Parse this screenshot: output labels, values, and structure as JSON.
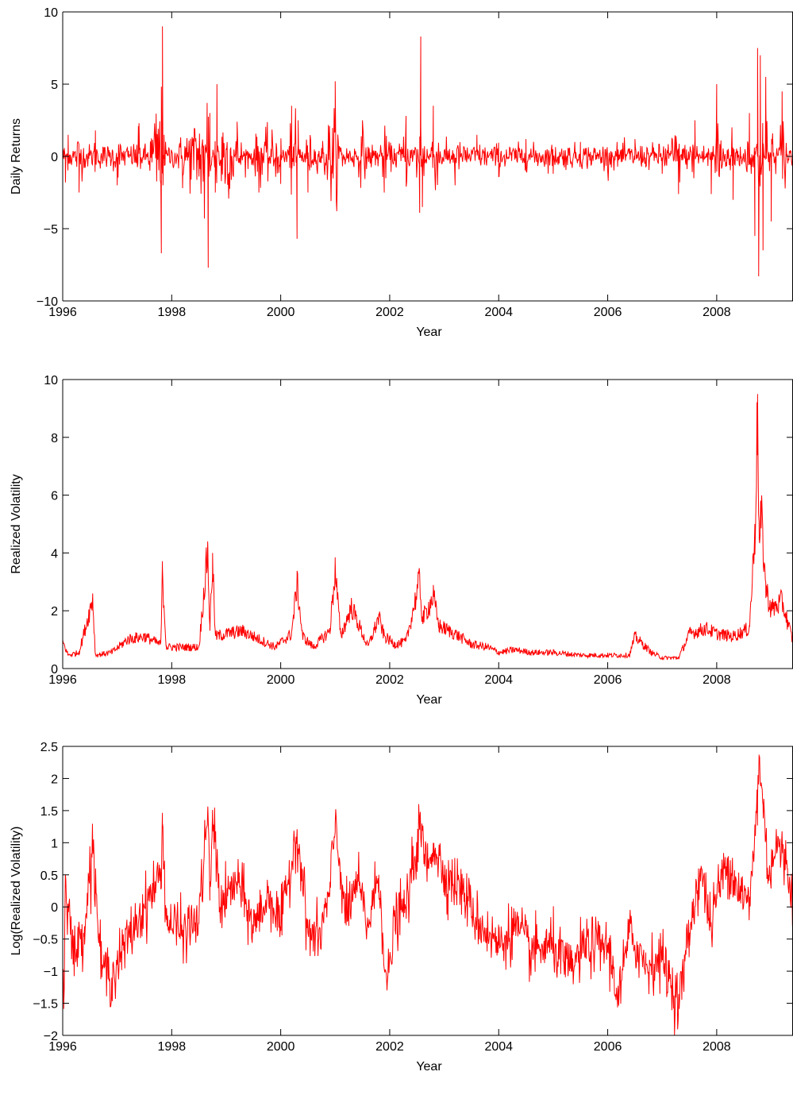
{
  "chart_data": [
    {
      "type": "line",
      "xlabel": "Year",
      "ylabel": "Daily Returns",
      "xlim": [
        1996,
        2009.4
      ],
      "ylim": [
        -10,
        10
      ],
      "xticks": [
        "1996",
        "1998",
        "2000",
        "2002",
        "2004",
        "2006",
        "2008"
      ],
      "yticks": [
        "10",
        "5",
        "0",
        "−5",
        "−10"
      ],
      "grid": false,
      "color": "#ff0000",
      "series": [
        {
          "x": [
            1996.0,
            1996.05,
            1996.1,
            1996.3,
            1996.6,
            1997.0,
            1997.4,
            1997.81,
            1997.83,
            1997.84,
            1997.86,
            1998.2,
            1998.6,
            1998.65,
            1998.67,
            1998.7,
            1998.8,
            1998.83,
            1999.2,
            1999.6,
            2000.0,
            2000.2,
            2000.3,
            2000.32,
            2000.5,
            2001.0,
            2001.02,
            2001.5,
            2001.9,
            2002.3,
            2002.55,
            2002.57,
            2002.6,
            2002.8,
            2003.2,
            2003.6,
            2004.0,
            2004.5,
            2005.0,
            2005.5,
            2006.0,
            2006.5,
            2007.0,
            2007.3,
            2007.6,
            2007.9,
            2008.0,
            2008.3,
            2008.6,
            2008.7,
            2008.75,
            2008.77,
            2008.8,
            2008.85,
            2008.9,
            2009.0,
            2009.2,
            2009.4
          ],
          "y": [
            0.5,
            -1.8,
            1.5,
            -2.5,
            1.8,
            -2.0,
            2.3,
            -6.7,
            9.0,
            -2.0,
            1.5,
            -2.2,
            -4.3,
            3.7,
            -7.7,
            3.0,
            -2.5,
            5.0,
            2.4,
            -2.5,
            -1.9,
            3.5,
            -5.7,
            2.5,
            -2.5,
            5.2,
            -3.0,
            2.5,
            -2.5,
            2.8,
            -3.9,
            8.3,
            -3.5,
            3.5,
            -2.0,
            1.5,
            -1.4,
            1.2,
            -1.2,
            1.0,
            -1.0,
            1.2,
            -1.2,
            -2.6,
            2.5,
            -2.6,
            5.0,
            -3.0,
            3.0,
            -5.5,
            7.5,
            -8.3,
            7.0,
            -6.5,
            5.5,
            -4.5,
            4.5,
            -2.0
          ]
        }
      ]
    },
    {
      "type": "line",
      "xlabel": "Year",
      "ylabel": "Realized Volatility",
      "xlim": [
        1996,
        2009.4
      ],
      "ylim": [
        0,
        10
      ],
      "xticks": [
        "1996",
        "1998",
        "2000",
        "2002",
        "2004",
        "2006",
        "2008"
      ],
      "yticks": [
        "10",
        "8",
        "6",
        "4",
        "2",
        "0"
      ],
      "grid": false,
      "color": "#ff0000",
      "series": [
        {
          "x": [
            1996.0,
            1996.1,
            1996.3,
            1996.55,
            1996.6,
            1996.9,
            1997.2,
            1997.5,
            1997.8,
            1997.83,
            1997.9,
            1998.2,
            1998.5,
            1998.66,
            1998.7,
            1998.75,
            1998.8,
            1999.0,
            1999.3,
            1999.6,
            1999.9,
            2000.2,
            2000.3,
            2000.4,
            2000.6,
            2000.9,
            2001.0,
            2001.1,
            2001.3,
            2001.6,
            2001.8,
            2001.9,
            2002.1,
            2002.3,
            2002.55,
            2002.6,
            2002.8,
            2002.9,
            2003.2,
            2003.5,
            2003.8,
            2004.0,
            2004.3,
            2004.6,
            2005.0,
            2005.5,
            2006.0,
            2006.4,
            2006.5,
            2006.8,
            2007.0,
            2007.3,
            2007.5,
            2007.8,
            2008.0,
            2008.3,
            2008.6,
            2008.7,
            2008.75,
            2008.78,
            2008.82,
            2008.9,
            2009.0,
            2009.2,
            2009.4
          ],
          "y": [
            1.0,
            0.5,
            0.6,
            2.6,
            0.5,
            0.6,
            1.1,
            1.2,
            0.9,
            3.5,
            0.8,
            0.8,
            0.8,
            4.4,
            1.5,
            4.0,
            1.2,
            1.3,
            1.4,
            1.1,
            0.8,
            1.3,
            3.2,
            1.2,
            0.8,
            1.4,
            3.7,
            1.2,
            2.3,
            0.8,
            1.9,
            1.2,
            0.9,
            1.0,
            3.3,
            1.8,
            2.7,
            1.6,
            1.3,
            0.9,
            0.8,
            0.6,
            0.7,
            0.6,
            0.6,
            0.5,
            0.5,
            0.5,
            1.2,
            0.6,
            0.4,
            0.4,
            1.3,
            1.5,
            1.3,
            1.2,
            1.5,
            5.0,
            9.5,
            4.5,
            5.7,
            3.0,
            2.2,
            2.5,
            1.0
          ]
        }
      ]
    },
    {
      "type": "line",
      "xlabel": "Year",
      "ylabel": "Log(Realized Volatility)",
      "xlim": [
        1996,
        2009.4
      ],
      "ylim": [
        -2,
        2.5
      ],
      "xticks": [
        "1996",
        "1998",
        "2000",
        "2002",
        "2004",
        "2006",
        "2008"
      ],
      "yticks": [
        "2.5",
        "2",
        "1.5",
        "1",
        "0.5",
        "0",
        "−0.5",
        "−1",
        "−1.5",
        "−2"
      ],
      "grid": false,
      "color": "#ff0000",
      "series": [
        {
          "x": [
            1996.0,
            1996.02,
            1996.05,
            1996.2,
            1996.4,
            1996.55,
            1996.7,
            1996.9,
            1997.2,
            1997.5,
            1997.8,
            1997.83,
            1997.9,
            1998.2,
            1998.5,
            1998.66,
            1998.7,
            1998.75,
            1998.9,
            1999.2,
            1999.5,
            1999.8,
            2000.0,
            2000.3,
            2000.5,
            2000.7,
            2000.9,
            2001.0,
            2001.2,
            2001.4,
            2001.6,
            2001.8,
            2001.95,
            2002.1,
            2002.3,
            2002.55,
            2002.7,
            2002.8,
            2003.0,
            2003.3,
            2003.6,
            2003.9,
            2004.0,
            2004.3,
            2004.6,
            2005.0,
            2005.3,
            2005.6,
            2006.0,
            2006.2,
            2006.4,
            2006.7,
            2007.0,
            2007.3,
            2007.5,
            2007.7,
            2007.9,
            2008.0,
            2008.2,
            2008.4,
            2008.6,
            2008.75,
            2008.78,
            2008.85,
            2008.95,
            2009.1,
            2009.3,
            2009.4
          ],
          "y": [
            -1.0,
            -1.5,
            0.5,
            -0.8,
            -0.3,
            1.0,
            -0.9,
            -1.1,
            -0.5,
            0.0,
            0.5,
            1.3,
            -0.2,
            -0.4,
            -0.2,
            1.5,
            0.1,
            1.4,
            0.0,
            0.4,
            -0.3,
            0.2,
            -0.3,
            1.2,
            -0.4,
            -0.5,
            0.2,
            1.3,
            -0.2,
            0.4,
            -0.3,
            0.5,
            -1.3,
            -0.2,
            0.0,
            1.2,
            0.6,
            1.0,
            0.5,
            0.3,
            -0.2,
            -0.5,
            -0.6,
            -0.3,
            -0.7,
            -0.6,
            -1.0,
            -0.6,
            -0.6,
            -1.4,
            -0.4,
            -0.9,
            -0.8,
            -1.5,
            -0.4,
            0.6,
            -0.3,
            0.2,
            0.7,
            0.3,
            0.0,
            1.7,
            2.3,
            1.6,
            0.5,
            1.0,
            0.6,
            0.1
          ]
        }
      ]
    }
  ]
}
